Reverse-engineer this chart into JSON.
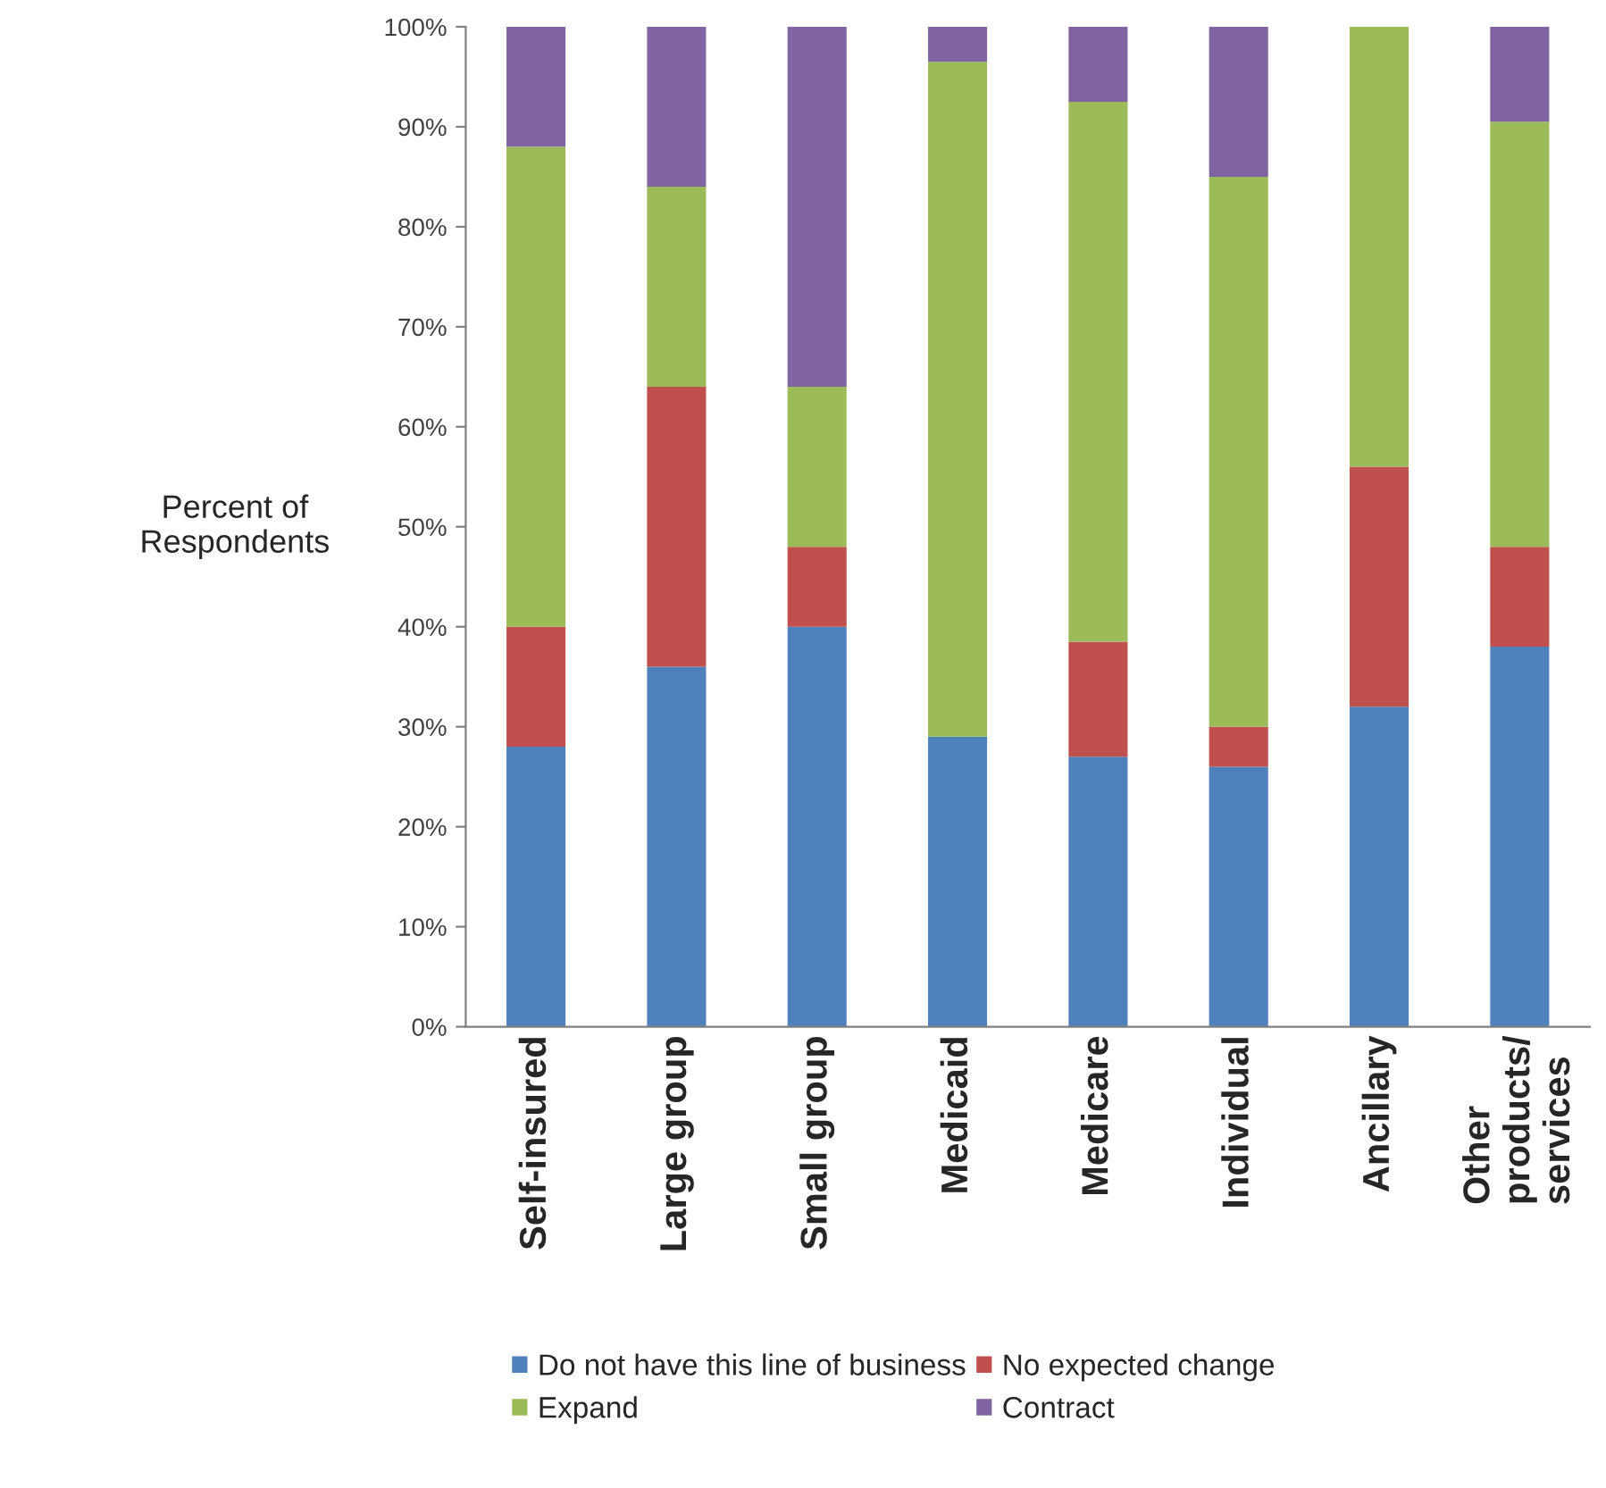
{
  "chart_data": {
    "type": "bar",
    "stacked": true,
    "ylabel": "Percent of\nRespondents",
    "categories": [
      "Self-insured",
      "Large group",
      "Small group",
      "Medicaid",
      "Medicare",
      "Individual",
      "Ancillary",
      "Other\nproducts/\nservices"
    ],
    "series": [
      {
        "name": "Do not have this line of business",
        "color": "#4f81bd",
        "values": [
          28,
          36,
          40,
          29,
          27,
          26,
          32,
          38
        ]
      },
      {
        "name": "No expected change",
        "color": "#c0504d",
        "values": [
          12,
          28,
          8,
          0,
          11.5,
          4,
          24,
          10
        ]
      },
      {
        "name": "Expand",
        "color": "#9bbb59",
        "values": [
          48,
          20,
          16,
          67.5,
          54,
          55,
          44,
          42.5
        ]
      },
      {
        "name": "Contract",
        "color": "#8064a2",
        "values": [
          12,
          16,
          36,
          3.5,
          7.5,
          15,
          0,
          9.5
        ]
      }
    ],
    "ylim": [
      0,
      100
    ],
    "yticks": [
      {
        "value": 0,
        "label": "0%"
      },
      {
        "value": 10,
        "label": "10%"
      },
      {
        "value": 20,
        "label": "20%"
      },
      {
        "value": 30,
        "label": "30%"
      },
      {
        "value": 40,
        "label": "40%"
      },
      {
        "value": 50,
        "label": "50%"
      },
      {
        "value": 60,
        "label": "60%"
      },
      {
        "value": 70,
        "label": "70%"
      },
      {
        "value": 80,
        "label": "80%"
      },
      {
        "value": 90,
        "label": "90%"
      },
      {
        "value": 100,
        "label": "100%"
      }
    ],
    "grid": false,
    "legend": "bottom"
  }
}
